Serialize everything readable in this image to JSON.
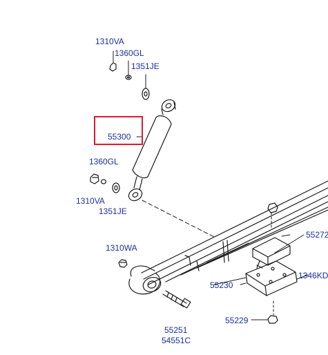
{
  "diagram": {
    "highlighted_part": "55300",
    "colors": {
      "label": "#1a2fa0",
      "line": "#1a1a1a",
      "highlight": "#e0182d"
    },
    "labels": {
      "top_1310va": "1310VA",
      "top_1360gl": "1360GL",
      "top_1351je": "1351JE",
      "shock_55300": "55300",
      "mid_1360gl": "1360GL",
      "mid_1310va": "1310VA",
      "mid_1351je": "1351JE",
      "nut_1310wa": "1310WA",
      "plate_55272": "55272",
      "bolt_1346kd": "1346KD",
      "plate_55230": "55230",
      "nut_55229": "55229",
      "bolt_55251": "55251",
      "bushing_54551c": "54551C"
    }
  }
}
